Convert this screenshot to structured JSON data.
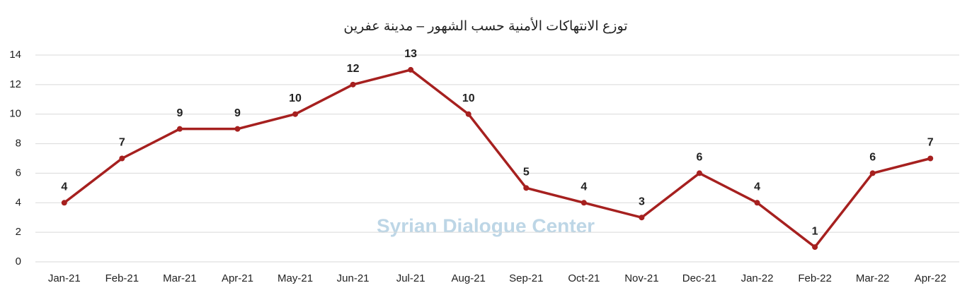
{
  "chart_data": {
    "type": "line",
    "title": "توزع الانتهاكات الأمنية حسب الشهور – مدينة عفرين",
    "watermark": "Syrian Dialogue Center",
    "categories": [
      "Jan-21",
      "Feb-21",
      "Mar-21",
      "Apr-21",
      "May-21",
      "Jun-21",
      "Jul-21",
      "Aug-21",
      "Sep-21",
      "Oct-21",
      "Nov-21",
      "Dec-21",
      "Jan-22",
      "Feb-22",
      "Mar-22",
      "Apr-22"
    ],
    "values": [
      4,
      7,
      9,
      9,
      10,
      12,
      13,
      10,
      5,
      4,
      3,
      6,
      4,
      1,
      6,
      7
    ],
    "color": "#a6201f",
    "ylim": [
      0,
      14
    ],
    "yticks": [
      0,
      2,
      4,
      6,
      8,
      10,
      12,
      14
    ],
    "grid": true
  }
}
